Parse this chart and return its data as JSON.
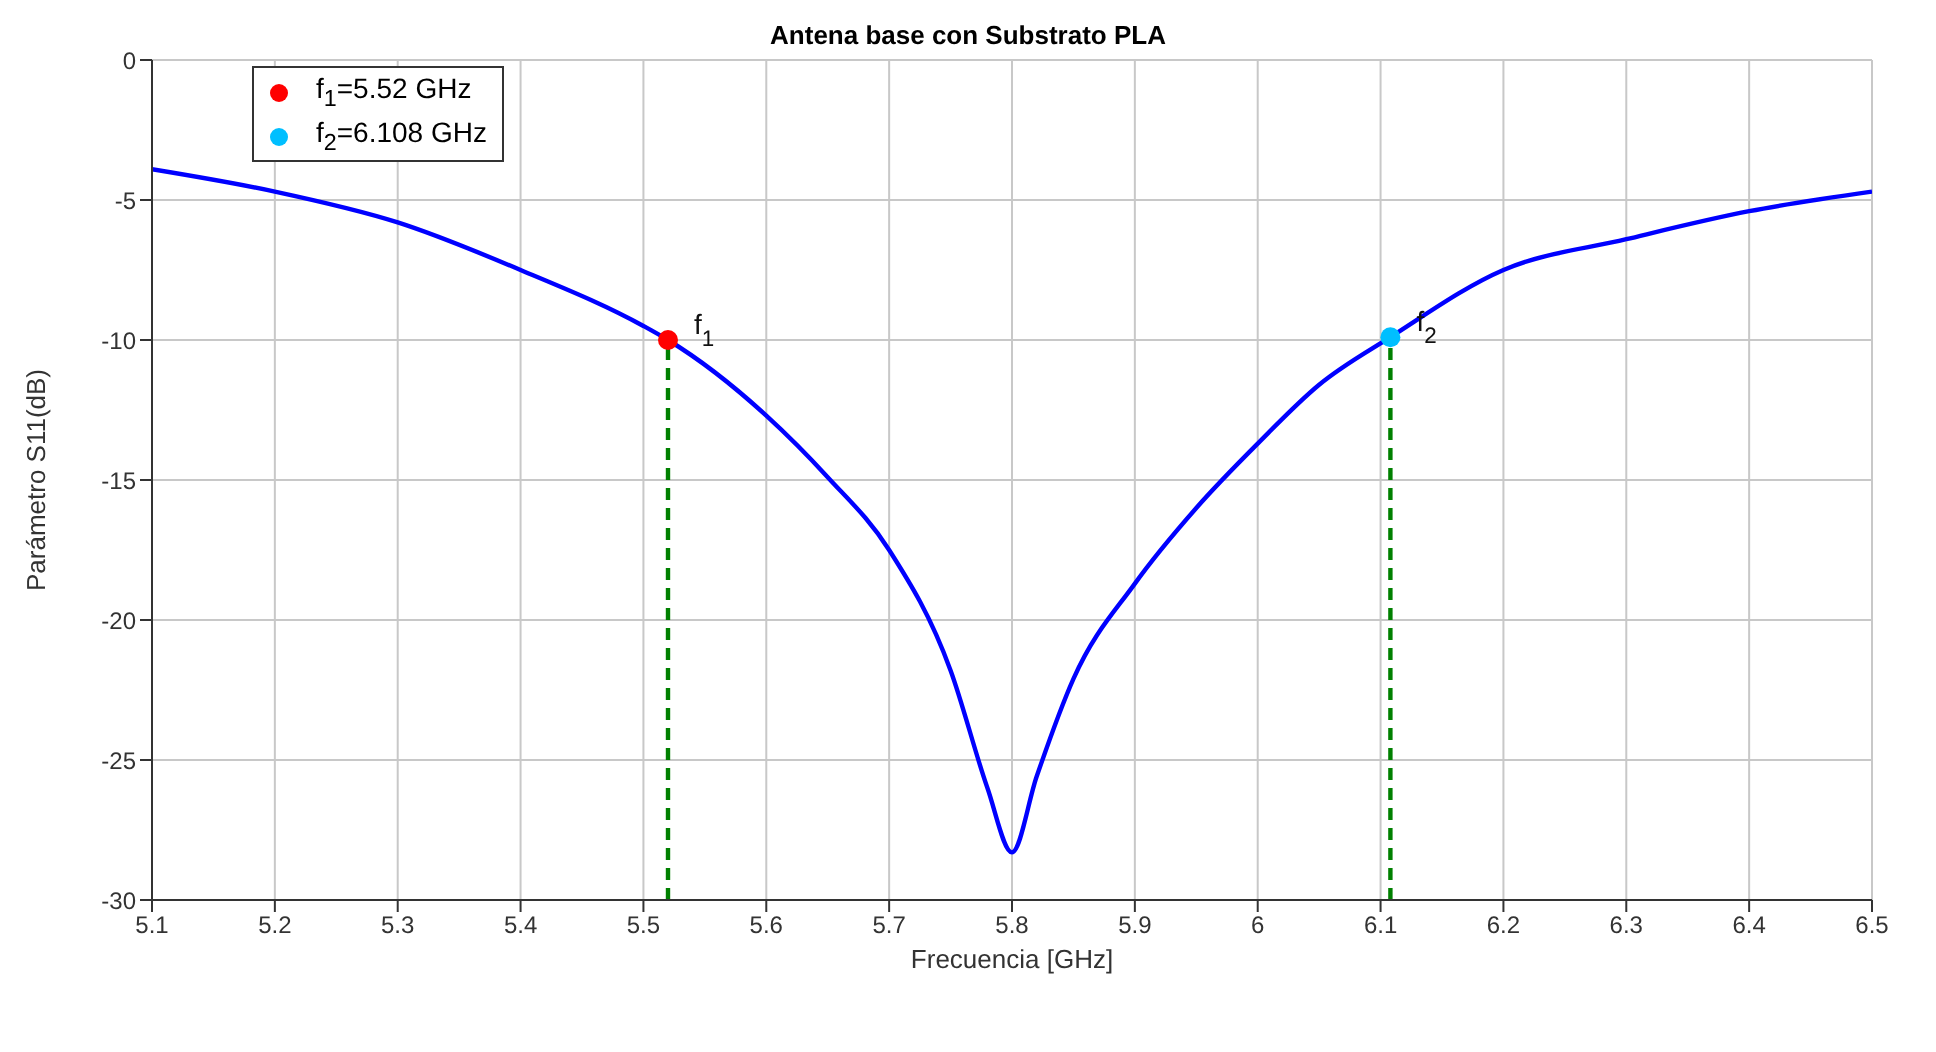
{
  "chart_data": {
    "type": "line",
    "title": "Antena base con Substrato PLA",
    "xlabel": "Frecuencia [GHz]",
    "ylabel": "Parámetro S11(dB)",
    "xlim": [
      5.1,
      6.5
    ],
    "ylim": [
      -30,
      0
    ],
    "xticks": [
      5.1,
      5.2,
      5.3,
      5.4,
      5.5,
      5.6,
      5.7,
      5.8,
      5.9,
      6,
      6.1,
      6.2,
      6.3,
      6.4,
      6.5
    ],
    "yticks": [
      -30,
      -25,
      -20,
      -15,
      -10,
      -5,
      0
    ],
    "grid": true,
    "legend": "top left",
    "marker": "none",
    "line_style": "solid",
    "series": [
      {
        "color": "#0000ff",
        "x": [
          5.1,
          5.2,
          5.3,
          5.4,
          5.5,
          5.52,
          5.6,
          5.65,
          5.7,
          5.75,
          5.78,
          5.8,
          5.82,
          5.85,
          5.9,
          5.95,
          6.0,
          6.05,
          6.108,
          6.2,
          6.3,
          6.4,
          6.5
        ],
        "values": [
          -3.9,
          -4.7,
          -5.8,
          -7.5,
          -9.5,
          -10,
          -12.7,
          -14.9,
          -17.5,
          -21.8,
          -26,
          -28.3,
          -25.6,
          -22.1,
          -18.7,
          -16,
          -13.7,
          -11.6,
          -9.9,
          -7.5,
          -6.4,
          -5.4,
          -4.7
        ]
      },
      {
        "color": "#008000",
        "line_style": "dashed",
        "x": [
          5.52,
          5.52
        ],
        "values": [
          -30,
          -10
        ]
      },
      {
        "color": "#008000",
        "line_style": "dashed",
        "x": [
          6.108,
          6.108
        ],
        "values": [
          -30,
          -9.9
        ]
      },
      {
        "type": "scatter",
        "name": "f$_{1}$=5.52 GHz",
        "color": "#ff0000",
        "marker": "circle",
        "x": [
          5.52
        ],
        "values": [
          -10
        ]
      },
      {
        "type": "scatter",
        "name": "f$_{2}$=6.108 GHz",
        "color": "#00bfff",
        "marker": "circle",
        "x": [
          6.108
        ],
        "values": [
          -9.9
        ]
      }
    ],
    "annotations": [
      {
        "text": "f$_{1}$",
        "x": 5.52,
        "y": -10
      },
      {
        "text": "f$_{2}$",
        "x": 6.108,
        "y": -9.9
      }
    ]
  }
}
